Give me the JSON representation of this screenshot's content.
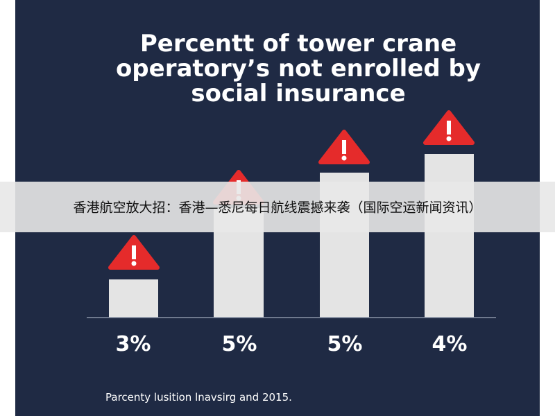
{
  "title_lines": [
    "Percentt of tower crane",
    "operatory’s not enrolled by",
    "social insurance"
  ],
  "bars": [
    {
      "label": "3%"
    },
    {
      "label": "5%"
    },
    {
      "label": "5%"
    },
    {
      "label": "4%"
    }
  ],
  "footnote": "Parcenty lusition lnavsirg and 2015.",
  "banner": "香港航空放大招：香港—悉尼每日航线震撼来袭（国际空运新闻资讯）"
}
